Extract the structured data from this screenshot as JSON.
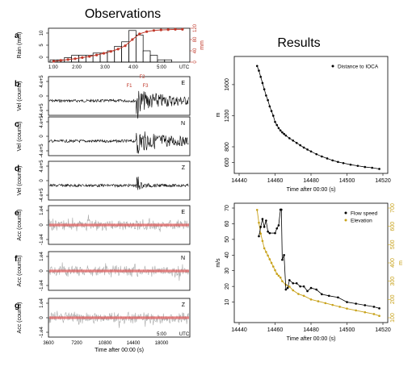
{
  "headings": {
    "left": "Observations",
    "right": "Results"
  },
  "colors": {
    "trace": "#000000",
    "red": "#c0392b",
    "envelope": "#e06060",
    "grey": "#aaaaaa",
    "gold": "#c8a21a",
    "black": "#000000"
  },
  "chart_data": [
    {
      "panel": "a",
      "type": "line+bar",
      "ylabel": "Rain (mm)",
      "ylabel_right": "mm",
      "yticks": [
        "0",
        "5",
        "10"
      ],
      "yticks_right": [
        "0",
        "40",
        "80",
        "120"
      ],
      "xticks": [
        "1:00",
        "2:00",
        "3:00",
        "4:00",
        "5:00",
        "UTC"
      ],
      "ylim": [
        0,
        15
      ],
      "ylim_right": [
        0,
        120
      ],
      "x": [
        1.0,
        1.25,
        1.5,
        1.75,
        2.0,
        2.25,
        2.5,
        2.75,
        3.0,
        3.25,
        3.5,
        3.75,
        4.0,
        4.25,
        4.5,
        4.75,
        5.0,
        5.25,
        5.5
      ],
      "bars": [
        1,
        1,
        2,
        3,
        3,
        3,
        4,
        4,
        5,
        7,
        9,
        14,
        12,
        5,
        3,
        1,
        1,
        0,
        0
      ],
      "cumulative": [
        3,
        6,
        9,
        12,
        16,
        20,
        25,
        31,
        38,
        46,
        58,
        80,
        100,
        108,
        112,
        114,
        115,
        116,
        116
      ]
    },
    {
      "panel": "b",
      "type": "line",
      "ylabel": "Vel (counts)",
      "yticks": [
        "-4.e+5",
        "0",
        "4.e+5"
      ],
      "component": "E",
      "annotations": [
        "F2",
        "F1",
        "F3"
      ],
      "trace_peak": [
        0.62,
        1.0
      ],
      "trace_decay": 0.3
    },
    {
      "panel": "c",
      "type": "line",
      "ylabel": "Vel (counts)",
      "yticks": [
        "-4.e+5",
        "0",
        "4.e+5"
      ],
      "component": "N",
      "trace_peak": [
        0.62,
        1.0
      ],
      "trace_decay": 0.3
    },
    {
      "panel": "d",
      "type": "line",
      "ylabel": "Vel (counts)",
      "yticks": [
        "-4.e+5",
        "0",
        "4.e+5"
      ],
      "component": "Z",
      "trace_peak": [
        0.62,
        0.5
      ],
      "trace_decay": 0.05
    },
    {
      "panel": "e",
      "type": "line",
      "ylabel": "Acc (counts)",
      "yticks": [
        "-1.e4",
        "0",
        "1.e4"
      ],
      "component": "E",
      "envelope": true
    },
    {
      "panel": "f",
      "type": "line",
      "ylabel": "Acc (counts)",
      "yticks": [
        "-1.e4",
        "0",
        "1.e4"
      ],
      "component": "N",
      "envelope": true
    },
    {
      "panel": "g",
      "type": "line",
      "ylabel": "Acc (counts)",
      "yticks": [
        "-1.e4",
        "0",
        "1.e4"
      ],
      "component": "Z",
      "envelope": true,
      "xticks": [
        "3600",
        "7200",
        "10800",
        "14400",
        "18000"
      ],
      "xticks_top": [
        "1:00",
        "2:00",
        "3:00",
        "4:00",
        "5:00",
        "UTC"
      ],
      "xlabel": "Time after 00:00 (s)"
    },
    {
      "panel": "right-top",
      "type": "line",
      "xlabel": "Time after 00:00 (s)",
      "ylabel": "m",
      "xlim": [
        14440,
        14520
      ],
      "ylim": [
        520,
        1900
      ],
      "xticks": [
        "14440",
        "14460",
        "14480",
        "14500",
        "14520"
      ],
      "yticks": [
        "600",
        "800",
        "1200",
        "1600"
      ],
      "series": [
        {
          "name": "Distance to IOCA",
          "x": [
            14450,
            14451,
            14452,
            14453,
            14454,
            14455,
            14456,
            14457,
            14458,
            14459,
            14460,
            14461,
            14462,
            14463,
            14464,
            14465,
            14466,
            14468,
            14470,
            14472,
            14474,
            14476,
            14478,
            14480,
            14483,
            14486,
            14489,
            14492,
            14495,
            14498,
            14502,
            14506,
            14510,
            14514,
            14518
          ],
          "y": [
            1840,
            1780,
            1700,
            1620,
            1540,
            1460,
            1400,
            1320,
            1260,
            1200,
            1120,
            1080,
            1040,
            1010,
            985,
            965,
            945,
            910,
            880,
            850,
            820,
            790,
            765,
            740,
            705,
            675,
            650,
            625,
            605,
            590,
            570,
            555,
            540,
            530,
            515
          ]
        }
      ]
    },
    {
      "panel": "right-bottom",
      "type": "line",
      "xlabel": "Time after 00:00 (s)",
      "ylabel": "m/s",
      "ylabel_right": "m",
      "xlim": [
        14440,
        14520
      ],
      "ylim": [
        0,
        70
      ],
      "ylim_right": [
        100,
        700
      ],
      "xticks": [
        "14440",
        "14460",
        "14480",
        "14500",
        "14520"
      ],
      "yticks": [
        "10",
        "20",
        "30",
        "40",
        "50",
        "60",
        "70"
      ],
      "yticks_right": [
        "100",
        "200",
        "300",
        "400",
        "500",
        "600",
        "700"
      ],
      "series": [
        {
          "name": "Flow speed",
          "x": [
            14451,
            14452,
            14453,
            14454,
            14455,
            14456,
            14457,
            14460,
            14461,
            14462,
            14463,
            14463.5,
            14464,
            14465,
            14466,
            14467,
            14468,
            14470,
            14472,
            14474,
            14476,
            14478,
            14480,
            14483,
            14486,
            14490,
            14495,
            14500,
            14505,
            14510,
            14515,
            14518
          ],
          "y": [
            52,
            58,
            63,
            58,
            62,
            55,
            54,
            54,
            57,
            59,
            69,
            69,
            37,
            40,
            18,
            19,
            24,
            22,
            22,
            20,
            20,
            17,
            19,
            18,
            15,
            14,
            13,
            10,
            9,
            8,
            7,
            6
          ]
        },
        {
          "name": "Elevation",
          "x": [
            14450,
            14451,
            14452,
            14453,
            14454,
            14455,
            14456,
            14457,
            14458,
            14459,
            14460,
            14461,
            14462,
            14463,
            14464,
            14466,
            14468,
            14470,
            14473,
            14476,
            14480,
            14484,
            14488,
            14492,
            14496,
            14500,
            14505,
            14510,
            14515,
            14518
          ],
          "y": [
            690,
            620,
            560,
            520,
            480,
            460,
            440,
            420,
            400,
            380,
            360,
            340,
            330,
            320,
            300,
            280,
            270,
            250,
            230,
            220,
            200,
            190,
            180,
            170,
            160,
            150,
            140,
            130,
            120,
            110
          ]
        }
      ]
    }
  ]
}
